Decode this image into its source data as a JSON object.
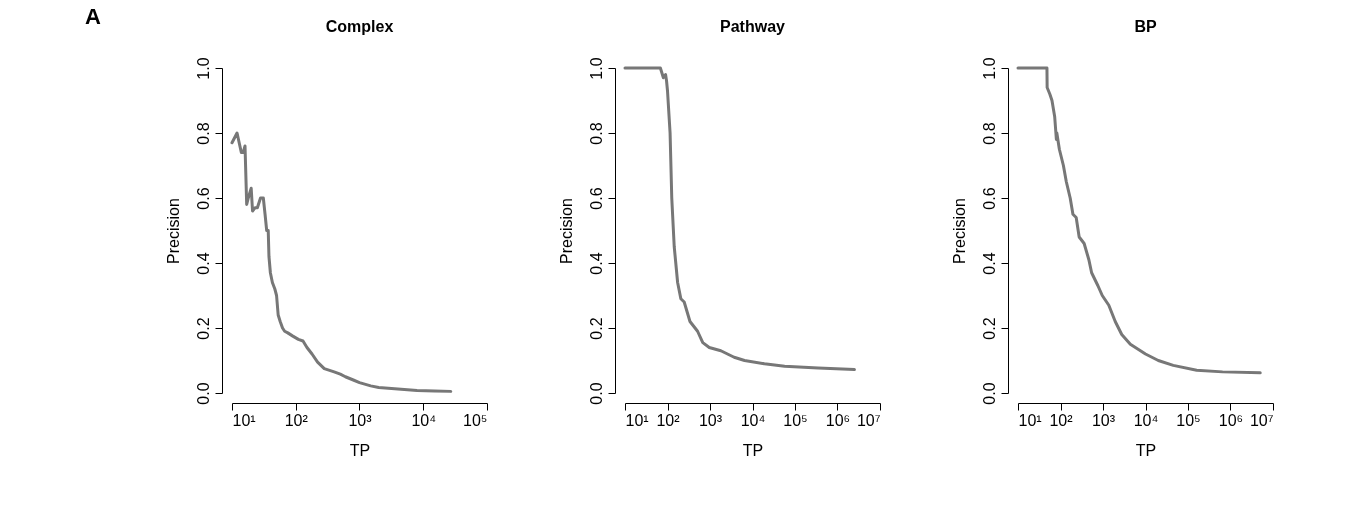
{
  "chart_data": [
    {
      "type": "line",
      "title": "Complex",
      "xlabel": "TP",
      "ylabel": "Precision",
      "annotations": [
        "A"
      ],
      "log": "x",
      "grid": false,
      "marker": "none",
      "line_style": "solid",
      "xlim": [
        10,
        100000
      ],
      "xticks": [
        {
          "value": 10,
          "label": "10¹"
        },
        {
          "value": 100,
          "label": "10²"
        },
        {
          "value": 1000,
          "label": "10³"
        },
        {
          "value": 10000,
          "label": "10⁴"
        },
        {
          "value": 100000,
          "label": "10⁵"
        }
      ],
      "ylim": [
        0,
        1
      ],
      "yticks": [
        {
          "value": 0,
          "label": "0.0"
        },
        {
          "value": 0.2,
          "label": "0.2"
        },
        {
          "value": 0.4,
          "label": "0.4"
        },
        {
          "value": 0.6,
          "label": "0.6"
        },
        {
          "value": 0.8,
          "label": "0.8"
        },
        {
          "value": 1,
          "label": "1.0"
        }
      ],
      "series": [
        {
          "color": "#777777",
          "x": [
            10,
            12,
            14,
            15,
            16,
            17,
            18,
            20,
            21,
            23,
            25,
            28,
            31,
            33,
            35,
            37,
            38,
            40,
            43,
            47,
            50,
            53,
            57,
            62,
            67,
            75,
            90,
            110,
            130,
            150,
            180,
            220,
            280,
            400,
            500,
            600,
            800,
            1000,
            1500,
            2000,
            4000,
            8000,
            15000,
            27000
          ],
          "values": [
            0.77,
            0.8,
            0.74,
            0.74,
            0.76,
            0.58,
            0.6,
            0.63,
            0.56,
            0.57,
            0.57,
            0.6,
            0.6,
            0.55,
            0.5,
            0.5,
            0.42,
            0.37,
            0.34,
            0.32,
            0.3,
            0.24,
            0.22,
            0.2,
            0.19,
            0.185,
            0.175,
            0.165,
            0.16,
            0.14,
            0.12,
            0.095,
            0.075,
            0.065,
            0.058,
            0.05,
            0.04,
            0.032,
            0.022,
            0.017,
            0.012,
            0.008,
            0.006,
            0.005
          ]
        }
      ]
    },
    {
      "type": "line",
      "title": "Pathway",
      "xlabel": "TP",
      "ylabel": "Precision",
      "log": "x",
      "grid": false,
      "marker": "none",
      "line_style": "solid",
      "xlim": [
        10,
        10000000
      ],
      "xticks": [
        {
          "value": 10,
          "label": "10¹"
        },
        {
          "value": 100,
          "label": "10²"
        },
        {
          "value": 1000,
          "label": "10³"
        },
        {
          "value": 10000,
          "label": "10⁴"
        },
        {
          "value": 100000,
          "label": "10⁵"
        },
        {
          "value": 1000000,
          "label": "10⁶"
        },
        {
          "value": 10000000,
          "label": "10⁷"
        }
      ],
      "ylim": [
        0,
        1
      ],
      "yticks": [
        {
          "value": 0,
          "label": "0.0"
        },
        {
          "value": 0.2,
          "label": "0.2"
        },
        {
          "value": 0.4,
          "label": "0.4"
        },
        {
          "value": 0.6,
          "label": "0.6"
        },
        {
          "value": 0.8,
          "label": "0.8"
        },
        {
          "value": 1,
          "label": "1.0"
        }
      ],
      "series": [
        {
          "color": "#777777",
          "x": [
            10,
            68,
            80,
            90,
            95,
            100,
            115,
            126,
            144,
            173,
            206,
            247,
            338,
            510,
            676,
            960,
            1800,
            3700,
            6500,
            19000,
            57000,
            350000,
            2500000
          ],
          "values": [
            1.0,
            1.0,
            0.97,
            0.98,
            0.96,
            0.93,
            0.8,
            0.6,
            0.45,
            0.34,
            0.29,
            0.28,
            0.22,
            0.19,
            0.155,
            0.14,
            0.13,
            0.11,
            0.1,
            0.09,
            0.082,
            0.077,
            0.072
          ]
        }
      ]
    },
    {
      "type": "line",
      "title": "BP",
      "xlabel": "TP",
      "ylabel": "Precision",
      "log": "x",
      "grid": false,
      "marker": "none",
      "line_style": "solid",
      "xlim": [
        10,
        10000000
      ],
      "xticks": [
        {
          "value": 10,
          "label": "10¹"
        },
        {
          "value": 100,
          "label": "10²"
        },
        {
          "value": 1000,
          "label": "10³"
        },
        {
          "value": 10000,
          "label": "10⁴"
        },
        {
          "value": 100000,
          "label": "10⁵"
        },
        {
          "value": 1000000,
          "label": "10⁶"
        },
        {
          "value": 10000000,
          "label": "10⁷"
        }
      ],
      "ylim": [
        0,
        1
      ],
      "yticks": [
        {
          "value": 0,
          "label": "0.0"
        },
        {
          "value": 0.2,
          "label": "0.2"
        },
        {
          "value": 0.4,
          "label": "0.4"
        },
        {
          "value": 0.6,
          "label": "0.6"
        },
        {
          "value": 0.8,
          "label": "0.8"
        },
        {
          "value": 1,
          "label": "1.0"
        }
      ],
      "series": [
        {
          "color": "#777777",
          "x": [
            10,
            48,
            48.5,
            56,
            63,
            73,
            80,
            82,
            94,
            117,
            137,
            169,
            196,
            234,
            275,
            360,
            465,
            540,
            760,
            960,
            1370,
            1940,
            2760,
            4400,
            10000,
            20000,
            45000,
            160000,
            650000,
            5000000
          ],
          "values": [
            1.0,
            1.0,
            0.94,
            0.92,
            0.9,
            0.85,
            0.78,
            0.8,
            0.75,
            0.7,
            0.65,
            0.6,
            0.55,
            0.54,
            0.48,
            0.46,
            0.41,
            0.37,
            0.33,
            0.3,
            0.27,
            0.22,
            0.18,
            0.15,
            0.12,
            0.1,
            0.085,
            0.07,
            0.065,
            0.062
          ]
        }
      ]
    }
  ]
}
